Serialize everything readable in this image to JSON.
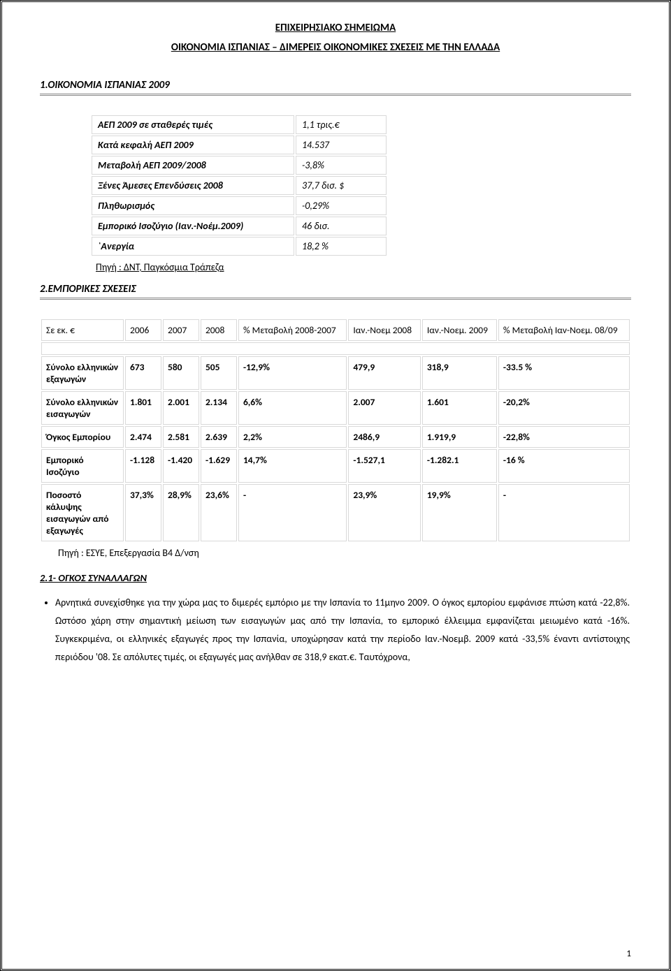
{
  "header": {
    "title1": "ΕΠΙΧΕΙΡΗΣΙΑΚΟ ΣΗΜΕΙΩΜΑ",
    "title2": "ΟΙΚΟΝΟΜΙΑ  ΙΣΠΑΝΙΑΣ – ΔΙΜΕΡΕΙΣ ΟΙΚΟΝΟΜΙΚΕΣ ΣΧΕΣΕΙΣ ΜΕ ΤΗΝ ΕΛΛΑΔΑ"
  },
  "section1": {
    "heading": "1.ΟΙΚΟΝΟΜΙΑ ΙΣΠΑΝΙΑΣ  2009",
    "rows": [
      {
        "label": "ΑΕΠ 2009 σε σταθερές τιμές",
        "value": "1,1 τρις.€"
      },
      {
        "label": "Κατά κεφαλή ΑΕΠ 2009",
        "value": "14.537"
      },
      {
        "label": "Μεταβολή ΑΕΠ  2009/2008",
        "value": "-3,8%"
      },
      {
        "label": "Ξένες  Άμεσες Επενδύσεις 2008",
        "value": "37,7 δισ. $"
      },
      {
        "label": "Πληθωρισμός",
        "value": "-0,29%"
      },
      {
        "label": "Εμπορικό Ισοζύγιο (Ιαν.-Νοέμ.2009)",
        "value": "46 δισ."
      },
      {
        "label": "`Ανεργία",
        "value": "18,2 %"
      }
    ],
    "source": "Πηγή : ΔΝΤ, Παγκόσμια Τράπεζα"
  },
  "section2": {
    "heading": "2.ΕΜΠΟΡΙΚΕΣ ΣΧΕΣΕΙΣ",
    "columns": [
      "Σε εκ. €",
      "2006",
      "2007",
      "2008",
      "% Μεταβολή 2008-2007",
      "Ιαν.-Νοεμ 2008",
      "Ιαν.-Νοεμ. 2009",
      "% Μεταβολή Ιαν-Νοεμ. 08/09"
    ],
    "rows": [
      {
        "label": "Σύνολο ελληνικών εξαγωγών",
        "c": [
          "673",
          "580",
          "505",
          "-12,9%",
          "479,9",
          "318,9",
          "-33.5 %"
        ]
      },
      {
        "label": "Σύνολο ελληνικών εισαγωγών",
        "c": [
          "1.801",
          "2.001",
          "2.134",
          "6,6%",
          "2.007",
          "1.601",
          "-20,2%"
        ]
      },
      {
        "label": "Όγκος Εμπορίου",
        "c": [
          "2.474",
          "2.581",
          "2.639",
          "2,2%",
          "2486,9",
          "1.919,9",
          "-22,8%"
        ]
      },
      {
        "label": "Εμπορικό Ισοζύγιο",
        "c": [
          "-1.128",
          "-1.420",
          "-1.629",
          "14,7%",
          "-1.527,1",
          "-1.282.1",
          "-16 %"
        ]
      },
      {
        "label": "Ποσοστό κάλυψης εισαγωγών από εξαγωγές",
        "c": [
          "37,3%",
          "28,9%",
          "23,6%",
          "-",
          "23,9%",
          "19,9%",
          "-"
        ]
      }
    ],
    "source": "Πηγή : ΕΣΥΕ, Επεξεργασία Β4 Δ/νση"
  },
  "section2_1": {
    "heading": "2.1- ΟΓΚΟΣ ΣΥΝΑΛΛΑΓΩΝ",
    "bullet": "Αρνητικά συνεχίσθηκε για την χώρα μας το διμερές εμπόριο με την Ισπανία το 11μηνο 2009. Ο όγκος εμπορίου εμφάνισε πτώση κατά -22,8%. Ωστόσο χάρη στην σημαντική μείωση των εισαγωγών μας από την Ισπανία, το εμπορικό έλλειμμα εμφανίζεται μειωμένο κατά -16%. Συγκεκριμένα, οι ελληνικές εξαγωγές προς την Ισπανία, υποχώρησαν κατά την περίοδο Ιαν.-Νοεμβ. 2009 κατά -33,5% έναντι αντίστοιχης περιόδου '08. Σε απόλυτες τιμές, οι εξαγωγές μας ανήλθαν σε 318,9 εκατ.€. Ταυτόχρονα,"
  },
  "pagenum": "1"
}
